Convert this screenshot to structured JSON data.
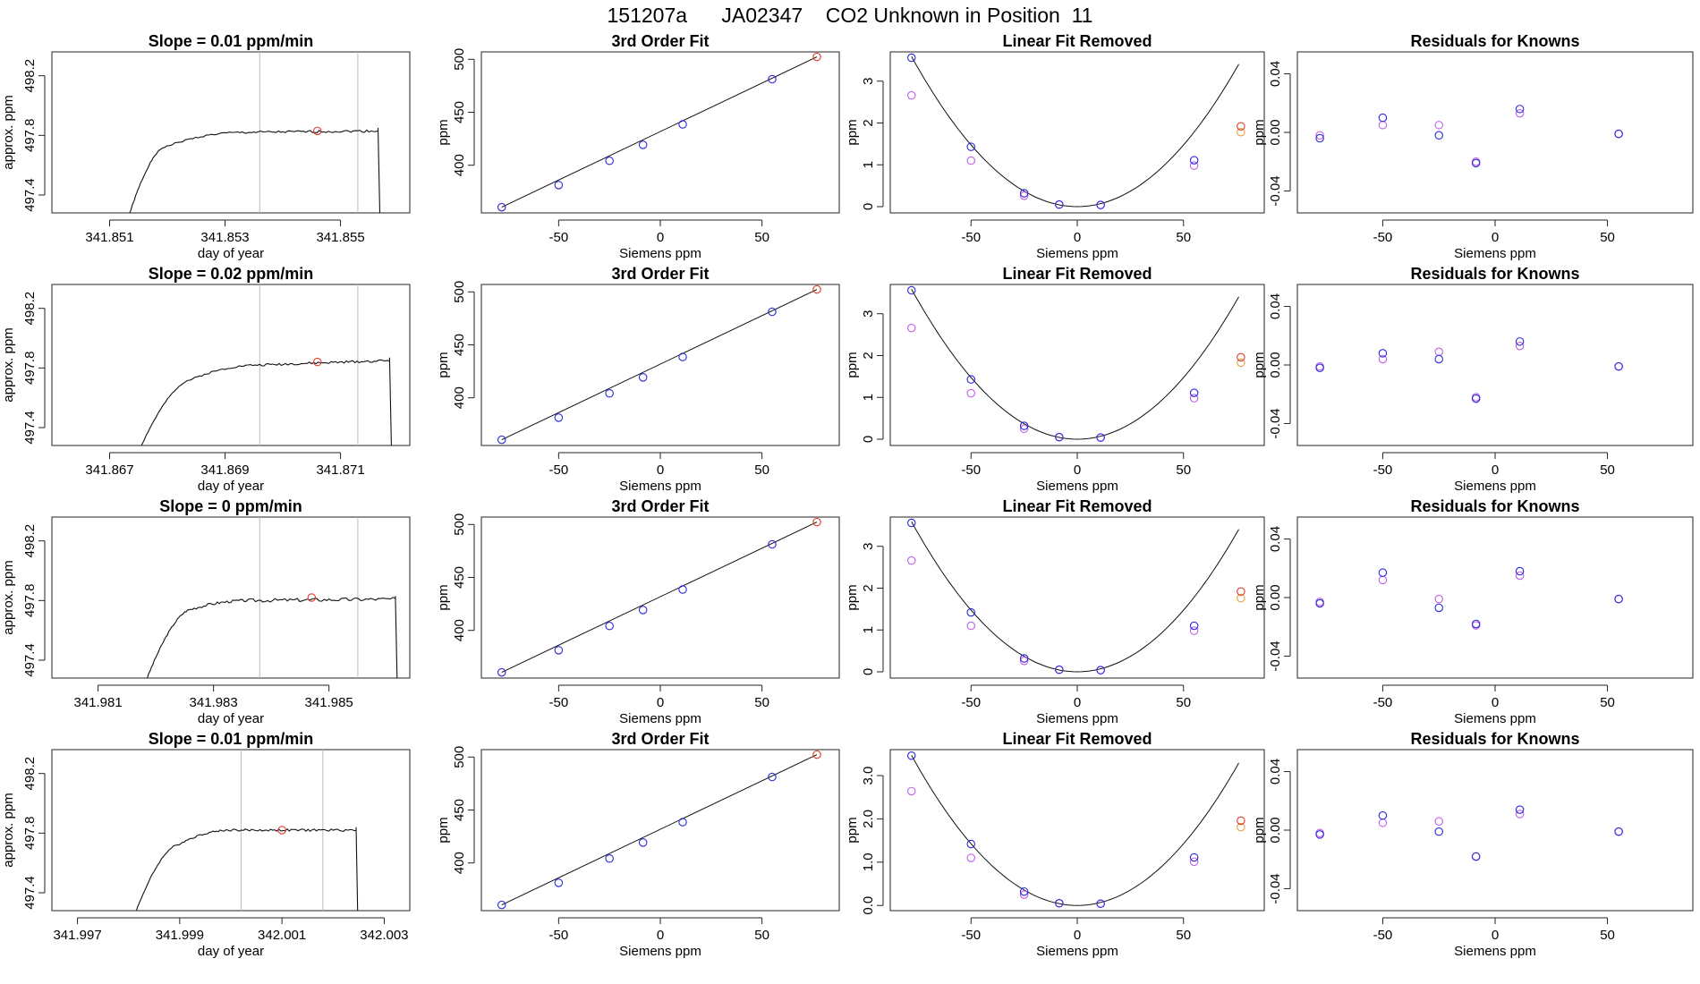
{
  "figure_title": "151207a      JA02347    CO2 Unknown in Position  11",
  "colors": {
    "frame": "#222222",
    "trace": "#111111",
    "red_point": "#e03a2a",
    "blue_point": "#2a2ad8",
    "violet_point": "#c060e8",
    "orange_point": "#e8a040",
    "marker_line": "#bbbbbb"
  },
  "chart_data": [
    {
      "type": "line",
      "row": 0,
      "title": "Slope =  0.01  ppm/min",
      "xlabel": "day of year",
      "ylabel": "approx. ppm",
      "xlim": [
        341.85,
        341.8562
      ],
      "ylim": [
        497.28,
        498.36
      ],
      "xticks": [
        341.851,
        341.853,
        341.855
      ],
      "xtick_labels": [
        "341.851",
        "341.853",
        "341.855"
      ],
      "yticks": [
        497.4,
        497.8,
        498.2
      ],
      "ytick_labels": [
        "497.4",
        "497.8",
        "498.2"
      ],
      "vlines": [
        341.8536,
        341.8553
      ],
      "trace": {
        "start": [
          341.85135,
          497.28
        ],
        "rise_to": [
          341.85195,
          497.72
        ],
        "plateau_to": [
          341.8533,
          497.82
        ],
        "end": 341.85565,
        "level": 497.83,
        "wiggle": 0.008,
        "drop_to": 497.28,
        "seed": 1
      },
      "marker": [
        341.8546,
        497.83
      ]
    },
    {
      "type": "line",
      "row": 1,
      "title": "Slope =  0.02  ppm/min",
      "xlabel": "day of year",
      "ylabel": "approx. ppm",
      "xlim": [
        341.866,
        341.8722
      ],
      "ylim": [
        497.28,
        498.36
      ],
      "xticks": [
        341.867,
        341.869,
        341.871
      ],
      "xtick_labels": [
        "341.867",
        "341.869",
        "341.871"
      ],
      "yticks": [
        497.4,
        497.8,
        498.2
      ],
      "ytick_labels": [
        "497.4",
        "497.8",
        "498.2"
      ],
      "vlines": [
        341.8696,
        341.8713
      ],
      "trace": {
        "start": [
          341.86755,
          497.28
        ],
        "rise_to": [
          341.8684,
          497.72
        ],
        "plateau_to": [
          341.8696,
          497.82
        ],
        "end": 341.87185,
        "level": 497.85,
        "wiggle": 0.008,
        "drop_to": 497.28,
        "seed": 2
      },
      "marker": [
        341.8706,
        497.84
      ]
    },
    {
      "type": "line",
      "row": 2,
      "title": "Slope =  0  ppm/min",
      "xlabel": "day of year",
      "ylabel": "approx. ppm",
      "xlim": [
        341.9802,
        341.9864
      ],
      "ylim": [
        497.28,
        498.36
      ],
      "xticks": [
        341.981,
        341.983,
        341.985
      ],
      "xtick_labels": [
        "341.981",
        "341.983",
        "341.985"
      ],
      "yticks": [
        497.4,
        497.8,
        498.2
      ],
      "ytick_labels": [
        "497.4",
        "497.8",
        "498.2"
      ],
      "vlines": [
        341.9838,
        341.9855
      ],
      "trace": {
        "start": [
          341.98185,
          497.28
        ],
        "rise_to": [
          341.9826,
          497.74
        ],
        "plateau_to": [
          341.9836,
          497.8
        ],
        "end": 341.98615,
        "level": 497.81,
        "wiggle": 0.012,
        "drop_to": 497.28,
        "seed": 3
      },
      "marker": [
        341.9847,
        497.82
      ]
    },
    {
      "type": "line",
      "row": 3,
      "title": "Slope =  0.01  ppm/min",
      "xlabel": "day of year",
      "ylabel": "approx. ppm",
      "xlim": [
        341.9965,
        342.0035
      ],
      "ylim": [
        497.28,
        498.36
      ],
      "xticks": [
        341.997,
        341.999,
        342.001,
        342.003
      ],
      "xtick_labels": [
        "341.997",
        "341.999",
        "342.001",
        "342.003"
      ],
      "yticks": [
        497.4,
        497.8,
        498.2
      ],
      "ytick_labels": [
        "497.4",
        "497.8",
        "498.2"
      ],
      "vlines": [
        342.0002,
        342.0018
      ],
      "trace": {
        "start": [
          341.99815,
          497.28
        ],
        "rise_to": [
          341.99895,
          497.72
        ],
        "plateau_to": [
          342.0,
          497.82
        ],
        "end": 342.00245,
        "level": 497.82,
        "wiggle": 0.008,
        "drop_to": 497.28,
        "seed": 4
      },
      "marker": [
        342.001,
        497.82
      ]
    },
    {
      "type": "scatter",
      "row": 0,
      "title": "3rd Order Fit",
      "xlabel": "Siemens ppm",
      "ylabel": "ppm",
      "xlim": [
        -88,
        88
      ],
      "ylim": [
        355,
        507
      ],
      "xticks": [
        -50,
        0,
        50
      ],
      "xtick_labels": [
        "-50",
        "0",
        "50"
      ],
      "yticks": [
        400,
        450,
        500
      ],
      "ytick_labels": [
        "400",
        "450",
        "500"
      ],
      "curve": [
        -78,
        360.4,
        77,
        502.3
      ],
      "points_blue": [
        [
          -78,
          360.4
        ],
        [
          -50,
          381.3
        ],
        [
          -25,
          404.2
        ],
        [
          -8.5,
          419.3
        ],
        [
          11,
          438.6
        ],
        [
          55,
          481.2
        ]
      ],
      "points_red": [
        [
          77,
          502.3
        ]
      ]
    },
    {
      "type": "scatter",
      "row": 1,
      "title": "3rd Order Fit",
      "xlabel": "Siemens ppm",
      "ylabel": "ppm",
      "xlim": [
        -88,
        88
      ],
      "ylim": [
        355,
        507
      ],
      "xticks": [
        -50,
        0,
        50
      ],
      "xtick_labels": [
        "-50",
        "0",
        "50"
      ],
      "yticks": [
        400,
        450,
        500
      ],
      "ytick_labels": [
        "400",
        "450",
        "500"
      ],
      "curve": [
        -78,
        360.4,
        77,
        502.3
      ],
      "points_blue": [
        [
          -78,
          360.4
        ],
        [
          -50,
          381.3
        ],
        [
          -25,
          404.2
        ],
        [
          -8.5,
          419.3
        ],
        [
          11,
          438.6
        ],
        [
          55,
          481.2
        ]
      ],
      "points_red": [
        [
          77,
          502.3
        ]
      ]
    },
    {
      "type": "scatter",
      "row": 2,
      "title": "3rd Order Fit",
      "xlabel": "Siemens ppm",
      "ylabel": "ppm",
      "xlim": [
        -88,
        88
      ],
      "ylim": [
        355,
        507
      ],
      "xticks": [
        -50,
        0,
        50
      ],
      "xtick_labels": [
        "-50",
        "0",
        "50"
      ],
      "yticks": [
        400,
        450,
        500
      ],
      "ytick_labels": [
        "400",
        "450",
        "500"
      ],
      "curve": [
        -78,
        360.4,
        77,
        502.3
      ],
      "points_blue": [
        [
          -78,
          360.4
        ],
        [
          -50,
          381.3
        ],
        [
          -25,
          404.2
        ],
        [
          -8.5,
          419.3
        ],
        [
          11,
          438.6
        ],
        [
          55,
          481.2
        ]
      ],
      "points_red": [
        [
          77,
          502.3
        ]
      ]
    },
    {
      "type": "scatter",
      "row": 3,
      "title": "3rd Order Fit",
      "xlabel": "Siemens ppm",
      "ylabel": "ppm",
      "xlim": [
        -88,
        88
      ],
      "ylim": [
        355,
        507
      ],
      "xticks": [
        -50,
        0,
        50
      ],
      "xtick_labels": [
        "-50",
        "0",
        "50"
      ],
      "yticks": [
        400,
        450,
        500
      ],
      "ytick_labels": [
        "400",
        "450",
        "500"
      ],
      "curve": [
        -78,
        360.4,
        77,
        502.3
      ],
      "points_blue": [
        [
          -78,
          360.4
        ],
        [
          -50,
          381.3
        ],
        [
          -25,
          404.2
        ],
        [
          -8.5,
          419.3
        ],
        [
          11,
          438.6
        ],
        [
          55,
          481.2
        ]
      ],
      "points_red": [
        [
          77,
          502.3
        ]
      ]
    },
    {
      "type": "scatter",
      "row": 0,
      "title": "Linear Fit Removed",
      "xlabel": "Siemens ppm",
      "ylabel": "ppm",
      "xlim": [
        -88,
        88
      ],
      "ylim": [
        -0.15,
        3.7
      ],
      "xticks": [
        -50,
        0,
        50
      ],
      "xtick_labels": [
        "-50",
        "0",
        "50"
      ],
      "yticks": [
        0,
        1,
        2,
        3
      ],
      "ytick_labels": [
        "0",
        "1",
        "2",
        "3"
      ],
      "curve": [
        0.00059,
        0.0
      ],
      "points_blue": [
        [
          -78,
          3.56
        ],
        [
          -50,
          1.43
        ],
        [
          -25,
          0.32
        ],
        [
          -8.5,
          0.05
        ],
        [
          11,
          0.04
        ],
        [
          55,
          1.11
        ]
      ],
      "points_violet": [
        [
          -78,
          2.66
        ],
        [
          -50,
          1.1
        ],
        [
          -25,
          0.26
        ],
        [
          -8.5,
          0.05
        ],
        [
          11,
          0.04
        ],
        [
          55,
          0.98
        ]
      ],
      "points_red": [
        [
          77,
          1.92
        ]
      ],
      "points_orange": [
        [
          77,
          1.78
        ]
      ]
    },
    {
      "type": "scatter",
      "row": 1,
      "title": "Linear Fit Removed",
      "xlabel": "Siemens ppm",
      "ylabel": "ppm",
      "xlim": [
        -88,
        88
      ],
      "ylim": [
        -0.15,
        3.7
      ],
      "xticks": [
        -50,
        0,
        50
      ],
      "xtick_labels": [
        "-50",
        "0",
        "50"
      ],
      "yticks": [
        0,
        1,
        2,
        3
      ],
      "ytick_labels": [
        "0",
        "1",
        "2",
        "3"
      ],
      "curve": [
        0.00059,
        0.0
      ],
      "points_blue": [
        [
          -78,
          3.56
        ],
        [
          -50,
          1.43
        ],
        [
          -25,
          0.32
        ],
        [
          -8.5,
          0.05
        ],
        [
          11,
          0.04
        ],
        [
          55,
          1.11
        ]
      ],
      "points_violet": [
        [
          -78,
          2.66
        ],
        [
          -50,
          1.1
        ],
        [
          -25,
          0.25
        ],
        [
          -8.5,
          0.05
        ],
        [
          11,
          0.04
        ],
        [
          55,
          0.98
        ]
      ],
      "points_red": [
        [
          77,
          1.96
        ]
      ],
      "points_orange": [
        [
          77,
          1.83
        ]
      ]
    },
    {
      "type": "scatter",
      "row": 2,
      "title": "Linear Fit Removed",
      "xlabel": "Siemens ppm",
      "ylabel": "ppm",
      "xlim": [
        -88,
        88
      ],
      "ylim": [
        -0.15,
        3.7
      ],
      "xticks": [
        -50,
        0,
        50
      ],
      "xtick_labels": [
        "-50",
        "0",
        "50"
      ],
      "yticks": [
        0,
        1,
        2,
        3
      ],
      "ytick_labels": [
        "0",
        "1",
        "2",
        "3"
      ],
      "curve": [
        0.00059,
        0.0
      ],
      "points_blue": [
        [
          -78,
          3.56
        ],
        [
          -50,
          1.42
        ],
        [
          -25,
          0.32
        ],
        [
          -8.5,
          0.05
        ],
        [
          11,
          0.04
        ],
        [
          55,
          1.1
        ]
      ],
      "points_violet": [
        [
          -78,
          2.66
        ],
        [
          -50,
          1.1
        ],
        [
          -25,
          0.26
        ],
        [
          -8.5,
          0.05
        ],
        [
          11,
          0.04
        ],
        [
          55,
          0.98
        ]
      ],
      "points_red": [
        [
          77,
          1.92
        ]
      ],
      "points_orange": [
        [
          77,
          1.76
        ]
      ]
    },
    {
      "type": "scatter",
      "row": 3,
      "title": "Linear Fit Removed",
      "xlabel": "Siemens ppm",
      "ylabel": "ppm",
      "xlim": [
        -88,
        88
      ],
      "ylim": [
        -0.12,
        3.6
      ],
      "xticks": [
        -50,
        0,
        50
      ],
      "xtick_labels": [
        "-50",
        "0",
        "50"
      ],
      "yticks": [
        0,
        1,
        2,
        3
      ],
      "ytick_labels": [
        "0.0",
        "1.0",
        "2.0",
        "3.0"
      ],
      "curve": [
        0.00057,
        0.0
      ],
      "points_blue": [
        [
          -78,
          3.46
        ],
        [
          -50,
          1.42
        ],
        [
          -25,
          0.32
        ],
        [
          -8.5,
          0.05
        ],
        [
          11,
          0.04
        ],
        [
          55,
          1.11
        ]
      ],
      "points_violet": [
        [
          -78,
          2.64
        ],
        [
          -50,
          1.1
        ],
        [
          -25,
          0.25
        ],
        [
          -8.5,
          0.05
        ],
        [
          11,
          0.04
        ],
        [
          55,
          1.01
        ]
      ],
      "points_red": [
        [
          77,
          1.96
        ]
      ],
      "points_orange": [
        [
          77,
          1.81
        ]
      ]
    },
    {
      "type": "scatter",
      "row": 0,
      "title": "Residuals for Knowns",
      "xlabel": "Siemens ppm",
      "ylabel": "ppm",
      "xlim": [
        -88,
        88
      ],
      "ylim": [
        -0.055,
        0.055
      ],
      "xticks": [
        -50,
        0,
        50
      ],
      "xtick_labels": [
        "-50",
        "0",
        "50"
      ],
      "yticks": [
        -0.04,
        0.0,
        0.04
      ],
      "ytick_labels": [
        "-0.04",
        "0.00",
        "0.04"
      ],
      "points_blue": [
        [
          -78,
          -0.004
        ],
        [
          -50,
          0.01
        ],
        [
          -25,
          -0.002
        ],
        [
          -8.5,
          -0.021
        ],
        [
          11,
          0.016
        ],
        [
          55,
          -0.001
        ]
      ],
      "points_violet": [
        [
          -78,
          -0.002
        ],
        [
          -50,
          0.005
        ],
        [
          -25,
          0.005
        ],
        [
          -8.5,
          -0.02
        ],
        [
          11,
          0.013
        ],
        [
          55,
          -0.001
        ]
      ]
    },
    {
      "type": "scatter",
      "row": 1,
      "title": "Residuals for Knowns",
      "xlabel": "Siemens ppm",
      "ylabel": "ppm",
      "xlim": [
        -88,
        88
      ],
      "ylim": [
        -0.055,
        0.055
      ],
      "xticks": [
        -50,
        0,
        50
      ],
      "xtick_labels": [
        "-50",
        "0",
        "50"
      ],
      "yticks": [
        -0.04,
        0.0,
        0.04
      ],
      "ytick_labels": [
        "-0.04",
        "0.00",
        "0.04"
      ],
      "points_blue": [
        [
          -78,
          -0.002
        ],
        [
          -50,
          0.008
        ],
        [
          -25,
          0.004
        ],
        [
          -8.5,
          -0.023
        ],
        [
          11,
          0.016
        ],
        [
          55,
          -0.001
        ]
      ],
      "points_violet": [
        [
          -78,
          -0.001
        ],
        [
          -50,
          0.004
        ],
        [
          -25,
          0.009
        ],
        [
          -8.5,
          -0.022
        ],
        [
          11,
          0.013
        ],
        [
          55,
          -0.001
        ]
      ]
    },
    {
      "type": "scatter",
      "row": 2,
      "title": "Residuals for Knowns",
      "xlabel": "Siemens ppm",
      "ylabel": "ppm",
      "xlim": [
        -88,
        88
      ],
      "ylim": [
        -0.055,
        0.055
      ],
      "xticks": [
        -50,
        0,
        50
      ],
      "xtick_labels": [
        "-50",
        "0",
        "50"
      ],
      "yticks": [
        -0.04,
        0.0,
        0.04
      ],
      "ytick_labels": [
        "-0.04",
        "0.00",
        "0.04"
      ],
      "points_blue": [
        [
          -78,
          -0.004
        ],
        [
          -50,
          0.017
        ],
        [
          -25,
          -0.007
        ],
        [
          -8.5,
          -0.018
        ],
        [
          11,
          0.018
        ],
        [
          55,
          -0.001
        ]
      ],
      "points_violet": [
        [
          -78,
          -0.003
        ],
        [
          -50,
          0.012
        ],
        [
          -25,
          -0.001
        ],
        [
          -8.5,
          -0.019
        ],
        [
          11,
          0.015
        ],
        [
          55,
          -0.001
        ]
      ]
    },
    {
      "type": "scatter",
      "row": 3,
      "title": "Residuals for Knowns",
      "xlabel": "Siemens ppm",
      "ylabel": "ppm",
      "xlim": [
        -88,
        88
      ],
      "ylim": [
        -0.055,
        0.055
      ],
      "xticks": [
        -50,
        0,
        50
      ],
      "xtick_labels": [
        "-50",
        "0",
        "50"
      ],
      "yticks": [
        -0.04,
        0.0,
        0.04
      ],
      "ytick_labels": [
        "-0.04",
        "0.00",
        "0.04"
      ],
      "points_blue": [
        [
          -78,
          -0.003
        ],
        [
          -50,
          0.01
        ],
        [
          -25,
          -0.001
        ],
        [
          -8.5,
          -0.018
        ],
        [
          11,
          0.014
        ],
        [
          55,
          -0.001
        ]
      ],
      "points_violet": [
        [
          -78,
          -0.002
        ],
        [
          -50,
          0.005
        ],
        [
          -25,
          0.006
        ],
        [
          -8.5,
          -0.018
        ],
        [
          11,
          0.011
        ],
        [
          55,
          -0.001
        ]
      ]
    }
  ]
}
